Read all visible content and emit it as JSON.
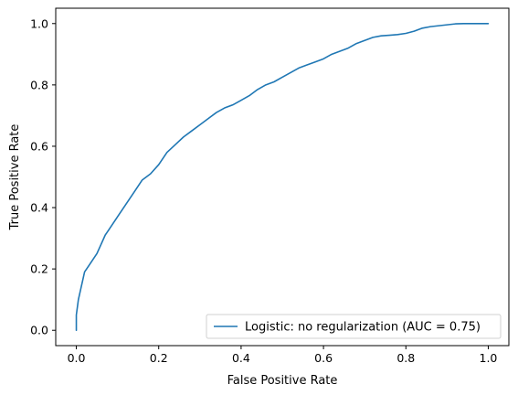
{
  "chart_data": {
    "type": "line",
    "title": "",
    "xlabel": "False Positive Rate",
    "ylabel": "True Positive Rate",
    "xlim": [
      -0.05,
      1.05
    ],
    "ylim": [
      -0.05,
      1.05
    ],
    "x_ticks": [
      0.0,
      0.2,
      0.4,
      0.6,
      0.8,
      1.0
    ],
    "y_ticks": [
      0.0,
      0.2,
      0.4,
      0.6,
      0.8,
      1.0
    ],
    "x_tick_labels": [
      "0.0",
      "0.2",
      "0.4",
      "0.6",
      "0.8",
      "1.0"
    ],
    "y_tick_labels": [
      "0.0",
      "0.2",
      "0.4",
      "0.6",
      "0.8",
      "1.0"
    ],
    "grid": false,
    "legend_position": "lower-right",
    "series": [
      {
        "name": "Logistic: no regularization (AUC = 0.75)",
        "color": "#1f77b4",
        "x": [
          0.0,
          0.0,
          0.005,
          0.01,
          0.015,
          0.02,
          0.03,
          0.04,
          0.05,
          0.06,
          0.07,
          0.08,
          0.09,
          0.1,
          0.12,
          0.14,
          0.16,
          0.18,
          0.2,
          0.22,
          0.24,
          0.26,
          0.28,
          0.3,
          0.32,
          0.34,
          0.36,
          0.38,
          0.4,
          0.42,
          0.44,
          0.46,
          0.48,
          0.5,
          0.52,
          0.54,
          0.56,
          0.58,
          0.6,
          0.62,
          0.64,
          0.66,
          0.68,
          0.7,
          0.72,
          0.74,
          0.76,
          0.78,
          0.8,
          0.82,
          0.84,
          0.86,
          0.88,
          0.9,
          0.92,
          0.94,
          0.96,
          0.98,
          1.0
        ],
        "y": [
          0.0,
          0.05,
          0.1,
          0.13,
          0.16,
          0.19,
          0.21,
          0.23,
          0.25,
          0.28,
          0.31,
          0.33,
          0.35,
          0.37,
          0.41,
          0.45,
          0.49,
          0.51,
          0.54,
          0.58,
          0.605,
          0.63,
          0.65,
          0.67,
          0.69,
          0.71,
          0.725,
          0.735,
          0.75,
          0.765,
          0.785,
          0.8,
          0.81,
          0.825,
          0.84,
          0.855,
          0.865,
          0.875,
          0.885,
          0.9,
          0.91,
          0.92,
          0.935,
          0.945,
          0.955,
          0.96,
          0.962,
          0.964,
          0.968,
          0.975,
          0.985,
          0.99,
          0.993,
          0.996,
          0.999,
          1.0,
          1.0,
          1.0,
          1.0
        ]
      }
    ]
  }
}
